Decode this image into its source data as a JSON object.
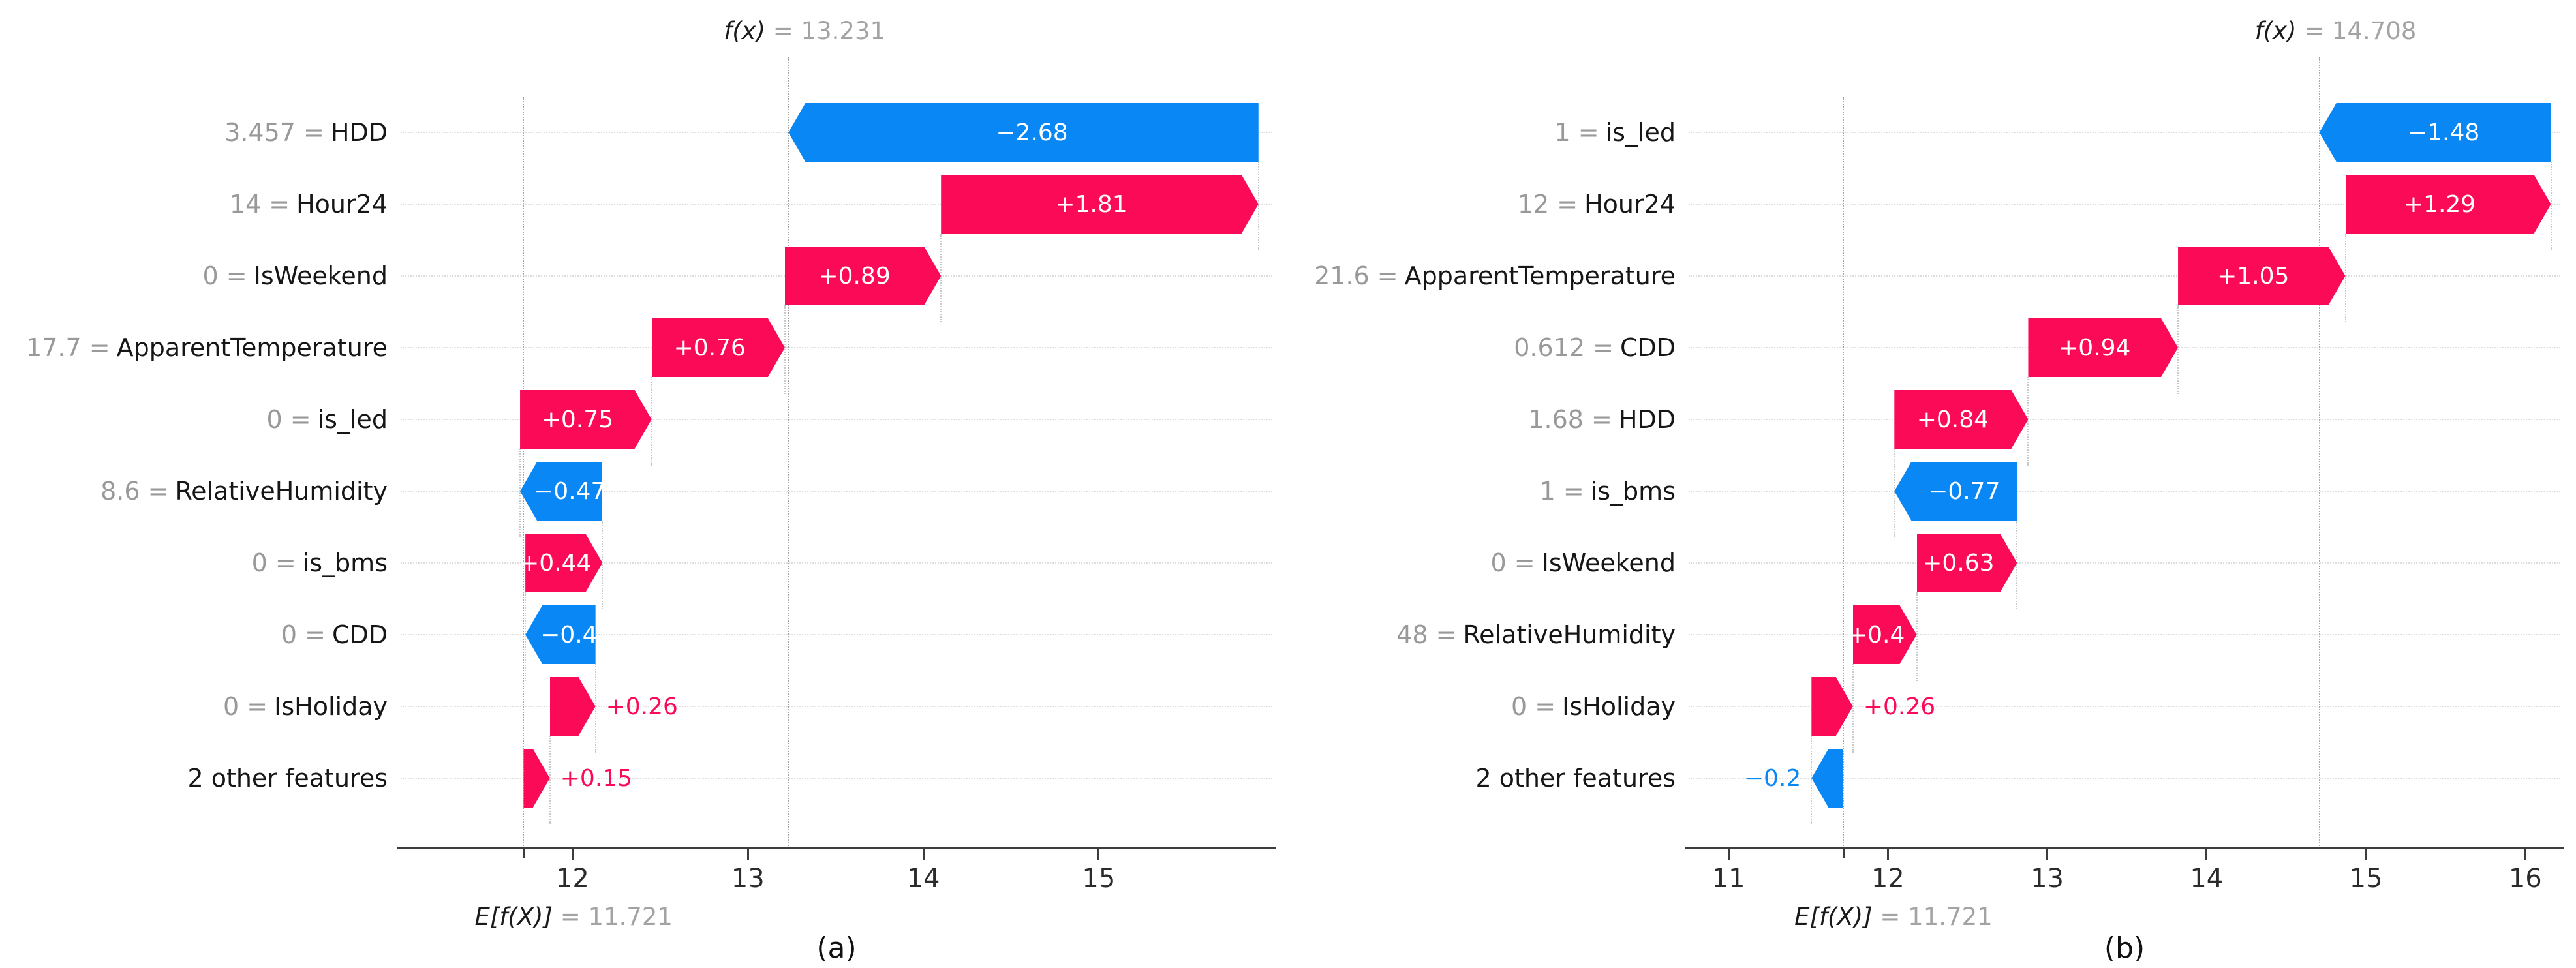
{
  "figure": {
    "background": "#ffffff",
    "colors": {
      "positive_bar": "#fb0b57",
      "negative_bar": "#0887f5",
      "axis": "#3d3d3d",
      "gridline": "#dcdcdc",
      "connector": "#c9c9c9",
      "refline": "#a6a6a6",
      "muted_text": "#999999",
      "text": "#161616"
    }
  },
  "chart_data": [
    {
      "type": "waterfall",
      "chart_style": "shap-waterfall",
      "caption": "(a)",
      "fx_name": "f(x)",
      "fx_display": "13.231",
      "fx": 13.231,
      "base_name": "E[f(X)]",
      "base_display": "11.721",
      "base": 11.721,
      "xlim": [
        11.02,
        15.99
      ],
      "xticks": [
        "12",
        "13",
        "14",
        "15"
      ],
      "xtick_values": [
        12,
        13,
        14,
        15
      ],
      "grid": "dotted-horizontal",
      "features": [
        {
          "value": "3.457",
          "name": "HDD",
          "shap": -2.68,
          "label": "−2.68"
        },
        {
          "value": "14",
          "name": "Hour24",
          "shap": 1.81,
          "label": "+1.81"
        },
        {
          "value": "0",
          "name": "IsWeekend",
          "shap": 0.89,
          "label": "+0.89"
        },
        {
          "value": "17.7",
          "name": "ApparentTemperature",
          "shap": 0.76,
          "label": "+0.76"
        },
        {
          "value": "0",
          "name": "is_led",
          "shap": 0.75,
          "label": "+0.75"
        },
        {
          "value": "8.6",
          "name": "RelativeHumidity",
          "shap": -0.47,
          "label": "−0.47"
        },
        {
          "value": "0",
          "name": "is_bms",
          "shap": 0.44,
          "label": "+0.44"
        },
        {
          "value": "0",
          "name": "CDD",
          "shap": -0.4,
          "label": "−0.4"
        },
        {
          "value": "0",
          "name": "IsHoliday",
          "shap": 0.26,
          "label": "+0.26"
        },
        {
          "value": null,
          "name": "2 other features",
          "shap": 0.15,
          "label": "+0.15"
        }
      ]
    },
    {
      "type": "waterfall",
      "chart_style": "shap-waterfall",
      "caption": "(b)",
      "fx_name": "f(x)",
      "fx_display": "14.708",
      "fx": 14.708,
      "base_name": "E[f(X)]",
      "base_display": "11.721",
      "base": 11.721,
      "xlim": [
        10.75,
        16.22
      ],
      "xticks": [
        "11",
        "12",
        "13",
        "14",
        "15",
        "16"
      ],
      "xtick_values": [
        11,
        12,
        13,
        14,
        15,
        16
      ],
      "grid": "dotted-horizontal",
      "features": [
        {
          "value": "1",
          "name": "is_led",
          "shap": -1.48,
          "label": "−1.48"
        },
        {
          "value": "12",
          "name": "Hour24",
          "shap": 1.29,
          "label": "+1.29"
        },
        {
          "value": "21.6",
          "name": "ApparentTemperature",
          "shap": 1.05,
          "label": "+1.05"
        },
        {
          "value": "0.612",
          "name": "CDD",
          "shap": 0.94,
          "label": "+0.94"
        },
        {
          "value": "1.68",
          "name": "HDD",
          "shap": 0.84,
          "label": "+0.84"
        },
        {
          "value": "1",
          "name": "is_bms",
          "shap": -0.77,
          "label": "−0.77"
        },
        {
          "value": "0",
          "name": "IsWeekend",
          "shap": 0.63,
          "label": "+0.63"
        },
        {
          "value": "48",
          "name": "RelativeHumidity",
          "shap": 0.4,
          "label": "+0.4"
        },
        {
          "value": "0",
          "name": "IsHoliday",
          "shap": 0.26,
          "label": "+0.26"
        },
        {
          "value": null,
          "name": "2 other features",
          "shap": -0.2,
          "label": "−0.2"
        }
      ]
    }
  ]
}
